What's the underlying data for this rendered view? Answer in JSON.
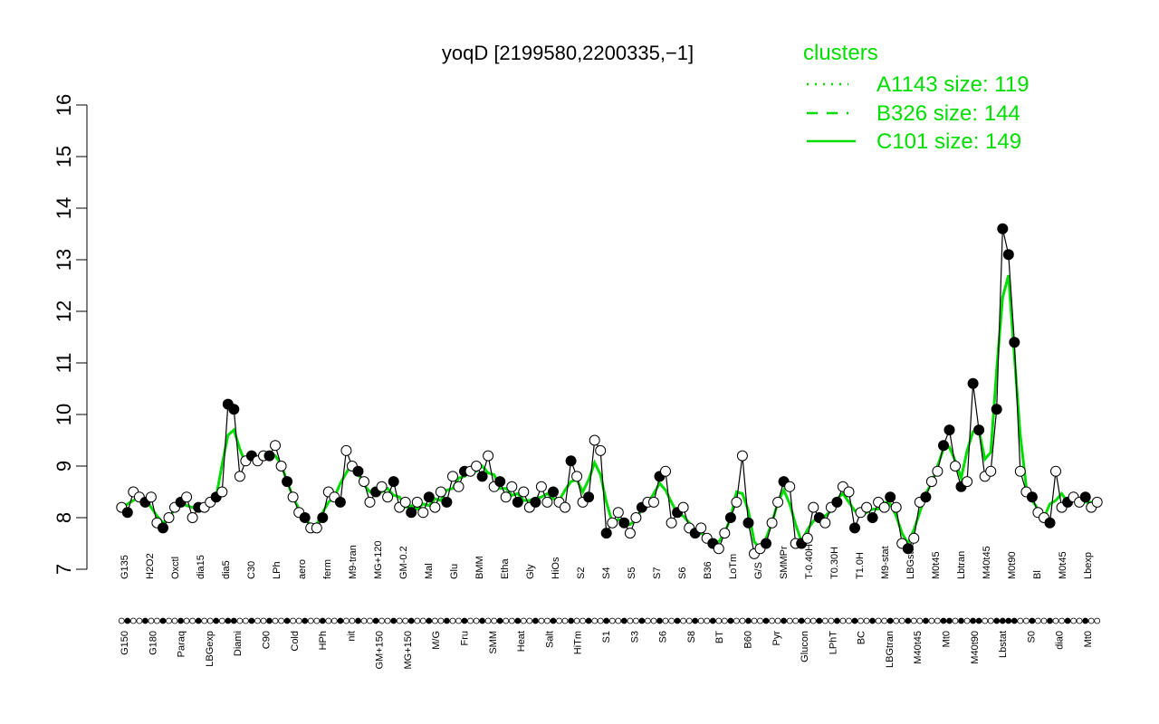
{
  "chart_data": {
    "type": "line",
    "title": "yoqD [2199580,2200335,−1]",
    "xlabel": "",
    "ylabel": "",
    "ylim": [
      7,
      16
    ],
    "y_ticks": [
      "7",
      "8",
      "9",
      "10",
      "11",
      "12",
      "13",
      "14",
      "15",
      "16"
    ],
    "legend": {
      "title": "clusters",
      "position": "top-right",
      "entries": [
        {
          "label": "A1143 size: 119",
          "style": "dotted"
        },
        {
          "label": "B326 size: 144",
          "style": "dashed"
        },
        {
          "label": "C101 size: 149",
          "style": "solid"
        }
      ]
    },
    "x_labels_upper": [
      "G135",
      "H2O2",
      "Oxctl",
      "dia15",
      "dia5",
      "C30",
      "LPh",
      "aero",
      "ferm",
      "M9-tran",
      "MG+120",
      "GM-0.2",
      "Mal",
      "Glu",
      "BMM",
      "Etha",
      "Gly",
      "HiOs",
      "S2",
      "S4",
      "S5",
      "S7",
      "S6",
      "B36",
      "LoTm",
      "G/S",
      "SMMPr",
      "T-0.40H",
      "T0.30H",
      "T1.0H",
      "M9-stat",
      "LBGstat",
      "M0t45",
      "Lbtran",
      "M40t45",
      "M0t90",
      "Bl",
      "M0t45",
      "Lbexp"
    ],
    "x_labels_lower": [
      "G150",
      "G180",
      "Paraq",
      "LBGexp",
      "Diami",
      "C90",
      "Cold",
      "HPh",
      "nit",
      "GM+150",
      "MG+150",
      "M/G",
      "Fru",
      "SMM",
      "Heat",
      "Salt",
      "HiTm",
      "S1",
      "S3",
      "S6",
      "S8",
      "BT",
      "B60",
      "Pyr",
      "Glucon",
      "LPhT",
      "BC",
      "LBGtran",
      "M40t45",
      "Mt0",
      "M40t90",
      "Lbstat",
      "S0",
      "dia0",
      "Mt0"
    ],
    "series_values": [
      8.2,
      8.1,
      8.5,
      8.4,
      8.3,
      8.4,
      7.9,
      7.8,
      8.0,
      8.2,
      8.3,
      8.4,
      8.0,
      8.2,
      8.2,
      8.3,
      8.4,
      8.5,
      10.2,
      10.1,
      8.8,
      9.1,
      9.2,
      9.1,
      9.2,
      9.2,
      9.4,
      9.0,
      8.7,
      8.4,
      8.1,
      8.0,
      7.8,
      7.8,
      8.0,
      8.5,
      8.4,
      8.3,
      9.3,
      9.0,
      8.9,
      8.7,
      8.3,
      8.5,
      8.6,
      8.4,
      8.7,
      8.2,
      8.3,
      8.1,
      8.3,
      8.1,
      8.4,
      8.2,
      8.5,
      8.3,
      8.8,
      8.6,
      8.9,
      8.9,
      9.0,
      8.8,
      9.2,
      8.6,
      8.7,
      8.4,
      8.6,
      8.3,
      8.5,
      8.2,
      8.3,
      8.6,
      8.3,
      8.5,
      8.3,
      8.2,
      9.1,
      8.8,
      8.3,
      8.4,
      9.5,
      9.3,
      7.7,
      7.9,
      8.1,
      7.9,
      7.7,
      8.0,
      8.2,
      8.3,
      8.3,
      8.8,
      8.9,
      7.9,
      8.1,
      8.2,
      7.8,
      7.7,
      7.8,
      7.6,
      7.5,
      7.4,
      7.7,
      8.0,
      8.3,
      9.2,
      7.9,
      7.3,
      7.4,
      7.5,
      7.9,
      8.3,
      8.7,
      8.6,
      7.5,
      7.5,
      7.6,
      8.2,
      8.0,
      7.9,
      8.2,
      8.3,
      8.6,
      8.5,
      7.8,
      8.1,
      8.2,
      8.0,
      8.3,
      8.2,
      8.4,
      8.2,
      7.5,
      7.4,
      7.6,
      8.3,
      8.4,
      8.7,
      8.9,
      9.4,
      9.7,
      9.0,
      8.6,
      8.7,
      10.6,
      9.7,
      8.8,
      8.9,
      10.1,
      13.6,
      13.1,
      11.4,
      8.9,
      8.5,
      8.4,
      8.1,
      8.0,
      7.9,
      8.9,
      8.2,
      8.3,
      8.4,
      8.3,
      8.4,
      8.2,
      8.3
    ],
    "colors": {
      "line": "#00dd00",
      "title_legend": "#00dd00",
      "point_fill_light": "#ffffff",
      "point_fill_dark": "#000000",
      "axis": "#000000"
    },
    "grid": false
  }
}
